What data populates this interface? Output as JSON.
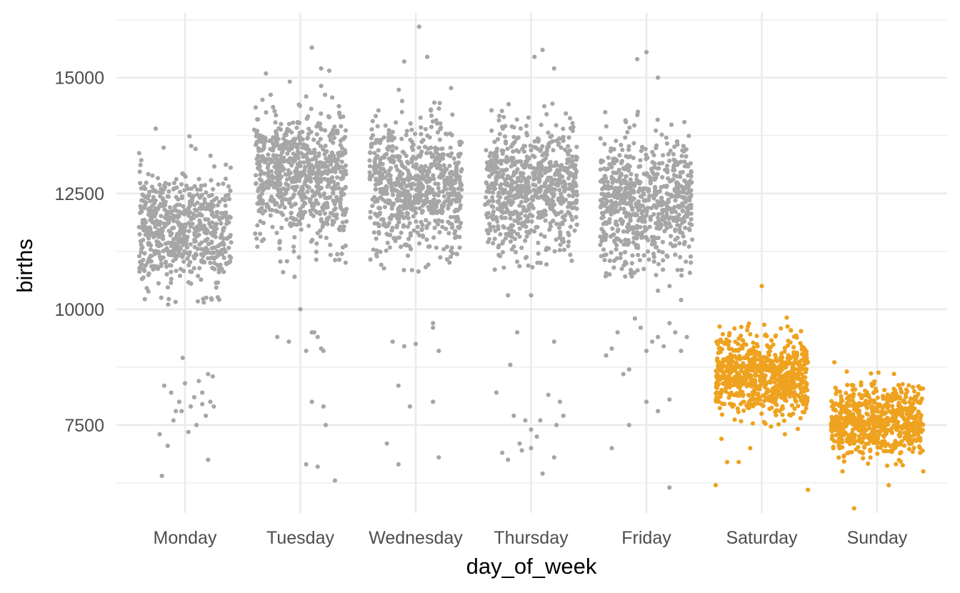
{
  "chart_data": {
    "type": "scatter",
    "style": "jitter",
    "categories": [
      "Monday",
      "Tuesday",
      "Wednesday",
      "Thursday",
      "Friday",
      "Saturday",
      "Sunday"
    ],
    "xlabel": "day_of_week",
    "ylabel": "births",
    "ylim": [
      5600,
      16400
    ],
    "yticks": [
      7500,
      10000,
      12500,
      15000
    ],
    "grid": true,
    "colors": {
      "weekday": "#a6a6a6",
      "weekend": "#eea21f"
    },
    "groups": [
      {
        "day": "Monday",
        "color_key": "weekday",
        "n": 650,
        "core_mean": 11700,
        "core_sd": 650,
        "core_min": 10100,
        "core_max": 14000,
        "outliers": [
          [
            -0.2,
            6400
          ],
          [
            -0.15,
            7050
          ],
          [
            -0.1,
            7600
          ],
          [
            -0.05,
            8000
          ],
          [
            0.0,
            8400
          ],
          [
            0.05,
            7900
          ],
          [
            0.1,
            7500
          ],
          [
            0.15,
            8200
          ],
          [
            0.2,
            8600
          ],
          [
            -0.18,
            8350
          ],
          [
            -0.08,
            7800
          ],
          [
            0.08,
            8100
          ],
          [
            0.18,
            7700
          ],
          [
            0.12,
            8450
          ],
          [
            -0.12,
            8200
          ],
          [
            0.22,
            8000
          ],
          [
            -0.02,
            8950
          ],
          [
            0.2,
            6750
          ],
          [
            0.25,
            7900
          ],
          [
            -0.22,
            7300
          ],
          [
            0.03,
            7350
          ],
          [
            -0.03,
            7800
          ],
          [
            0.15,
            7950
          ],
          [
            0.24,
            8550
          ]
        ]
      },
      {
        "day": "Tuesday",
        "color_key": "weekday",
        "n": 750,
        "core_mean": 12900,
        "core_sd": 700,
        "core_min": 11000,
        "core_max": 15200,
        "outliers": [
          [
            -0.2,
            9400
          ],
          [
            -0.1,
            9300
          ],
          [
            -0.05,
            10700
          ],
          [
            0.0,
            10000
          ],
          [
            0.05,
            9100
          ],
          [
            0.1,
            9500
          ],
          [
            0.15,
            9400
          ],
          [
            0.2,
            9100
          ],
          [
            -0.15,
            10800
          ],
          [
            0.12,
            9500
          ],
          [
            0.18,
            9150
          ],
          [
            0.1,
            8000
          ],
          [
            0.2,
            7900
          ],
          [
            0.05,
            6650
          ],
          [
            0.15,
            6600
          ],
          [
            0.3,
            6300
          ],
          [
            0.22,
            7500
          ],
          [
            0.1,
            15650
          ],
          [
            0.18,
            15200
          ],
          [
            0.25,
            15150
          ]
        ]
      },
      {
        "day": "Wednesday",
        "color_key": "weekday",
        "n": 730,
        "core_mean": 12600,
        "core_sd": 700,
        "core_min": 10800,
        "core_max": 15200,
        "outliers": [
          [
            -0.2,
            9300
          ],
          [
            -0.1,
            9200
          ],
          [
            0.0,
            9250
          ],
          [
            0.15,
            9700
          ],
          [
            0.2,
            9100
          ],
          [
            -0.15,
            8350
          ],
          [
            -0.05,
            7900
          ],
          [
            0.15,
            8000
          ],
          [
            -0.25,
            7100
          ],
          [
            -0.15,
            6650
          ],
          [
            0.2,
            6800
          ],
          [
            0.03,
            16100
          ],
          [
            0.1,
            15450
          ],
          [
            -0.1,
            15350
          ],
          [
            0.15,
            9600
          ]
        ]
      },
      {
        "day": "Thursday",
        "color_key": "weekday",
        "n": 720,
        "core_mean": 12600,
        "core_sd": 700,
        "core_min": 10800,
        "core_max": 15400,
        "outliers": [
          [
            -0.3,
            8200
          ],
          [
            -0.25,
            6900
          ],
          [
            -0.2,
            6750
          ],
          [
            -0.15,
            7700
          ],
          [
            -0.1,
            7100
          ],
          [
            -0.05,
            7600
          ],
          [
            0.0,
            7400
          ],
          [
            0.05,
            7250
          ],
          [
            0.1,
            6450
          ],
          [
            0.15,
            8150
          ],
          [
            0.2,
            9300
          ],
          [
            0.22,
            7500
          ],
          [
            -0.12,
            9500
          ],
          [
            -0.18,
            8800
          ],
          [
            0.25,
            8000
          ],
          [
            0.28,
            7700
          ],
          [
            0.0,
            10300
          ],
          [
            -0.2,
            10300
          ],
          [
            0.2,
            6800
          ],
          [
            -0.08,
            6950
          ],
          [
            0.03,
            15450
          ],
          [
            0.1,
            15600
          ],
          [
            0.2,
            15200
          ],
          [
            0.08,
            7600
          ],
          [
            0.0,
            7000
          ]
        ]
      },
      {
        "day": "Friday",
        "color_key": "weekday",
        "n": 700,
        "core_mean": 12300,
        "core_sd": 700,
        "core_min": 10700,
        "core_max": 15500,
        "outliers": [
          [
            -0.35,
            9000
          ],
          [
            -0.3,
            9150
          ],
          [
            -0.25,
            9500
          ],
          [
            -0.2,
            8600
          ],
          [
            -0.15,
            8700
          ],
          [
            -0.1,
            9800
          ],
          [
            -0.05,
            9600
          ],
          [
            0.0,
            9100
          ],
          [
            0.05,
            9300
          ],
          [
            0.1,
            9400
          ],
          [
            0.15,
            9200
          ],
          [
            0.2,
            9700
          ],
          [
            0.25,
            9500
          ],
          [
            0.3,
            9100
          ],
          [
            0.35,
            9400
          ],
          [
            -0.3,
            7000
          ],
          [
            -0.15,
            7500
          ],
          [
            0.0,
            8000
          ],
          [
            0.1,
            7800
          ],
          [
            0.2,
            8050
          ],
          [
            0.2,
            6150
          ],
          [
            0.1,
            10400
          ],
          [
            0.2,
            10500
          ],
          [
            0.3,
            10200
          ],
          [
            0.0,
            15550
          ],
          [
            -0.08,
            15400
          ],
          [
            0.1,
            15000
          ]
        ]
      },
      {
        "day": "Saturday",
        "color_key": "weekend",
        "n": 750,
        "core_mean": 8600,
        "core_sd": 400,
        "core_min": 7400,
        "core_max": 10000,
        "outliers": [
          [
            -0.4,
            6200
          ],
          [
            -0.3,
            6700
          ],
          [
            -0.2,
            6700
          ],
          [
            -0.1,
            7000
          ],
          [
            -0.35,
            7200
          ],
          [
            0.2,
            7300
          ],
          [
            0.4,
            6100
          ],
          [
            0.0,
            10500
          ]
        ]
      },
      {
        "day": "Sunday",
        "color_key": "weekend",
        "n": 700,
        "core_mean": 7600,
        "core_sd": 380,
        "core_min": 6600,
        "core_max": 8900,
        "outliers": [
          [
            -0.2,
            5700
          ],
          [
            0.1,
            6200
          ],
          [
            -0.3,
            6500
          ],
          [
            0.4,
            6500
          ]
        ]
      }
    ]
  }
}
